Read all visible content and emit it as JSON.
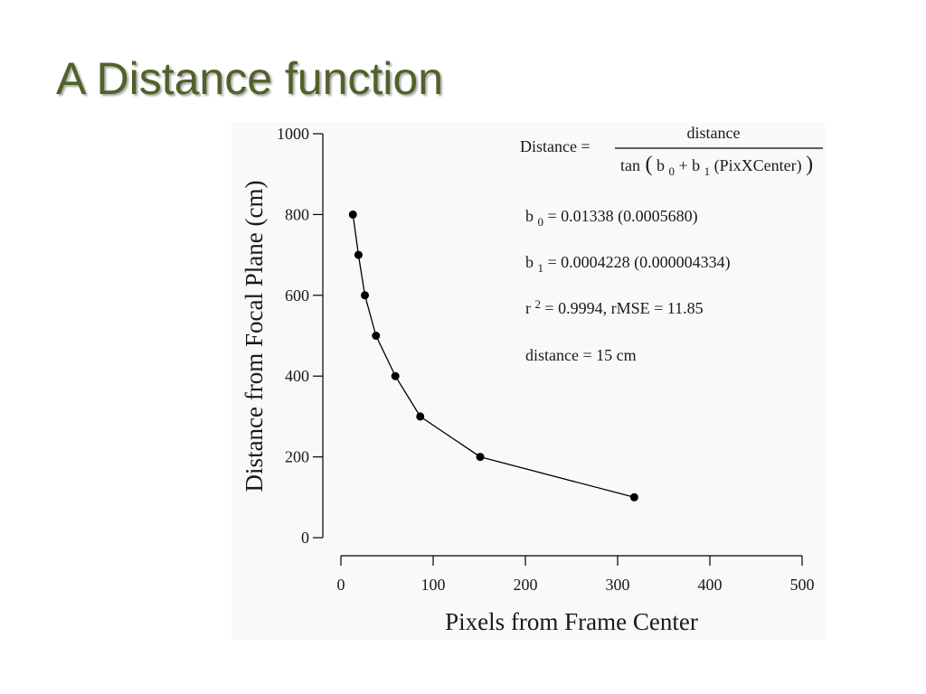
{
  "slide": {
    "title": "A Distance function",
    "title_color": "#4f6228"
  },
  "chart_data": {
    "type": "line",
    "title": "",
    "xlabel": "Pixels from Frame Center",
    "ylabel": "Distance from Focal Plane (cm)",
    "xlim": [
      0,
      500
    ],
    "ylim": [
      0,
      1000
    ],
    "x_ticks": [
      0,
      100,
      200,
      300,
      400,
      500
    ],
    "y_ticks": [
      0,
      200,
      400,
      600,
      800,
      1000
    ],
    "grid": false,
    "legend": "none",
    "series": [
      {
        "x": [
          13,
          19,
          26,
          38,
          59,
          86,
          151,
          318
        ],
        "y": [
          800,
          700,
          600,
          500,
          400,
          300,
          200,
          100
        ],
        "marker": "circle",
        "color": "#000000"
      }
    ],
    "annotations": {
      "formula": {
        "lhs": "Distance =",
        "numerator": "distance",
        "den_tan": "tan",
        "den_b": "b",
        "den_sub0": "0",
        "den_plus": " + b",
        "den_sub1": "1",
        "den_arg": " (PixXCenter)"
      },
      "b0": {
        "sym": "b",
        "sub": "0",
        "text": " = 0.01338 (0.0005680)"
      },
      "b1": {
        "sym": "b",
        "sub": "1",
        "text": " = 0.0004228 (0.000004334)"
      },
      "fit": {
        "sym": "r",
        "sup": "2",
        "text": " = 0.9994, rMSE = 11.85"
      },
      "distance": "distance = 15 cm"
    }
  }
}
